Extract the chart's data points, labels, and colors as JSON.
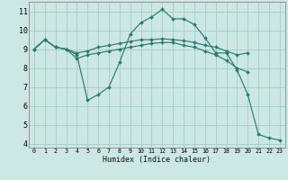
{
  "xlabel": "Humidex (Indice chaleur)",
  "background_color": "#cce8e4",
  "grid_color": "#aacfcb",
  "line_color": "#2a7d6e",
  "xlim": [
    -0.5,
    23.5
  ],
  "ylim": [
    3.8,
    11.5
  ],
  "yticks": [
    4,
    5,
    6,
    7,
    8,
    9,
    10,
    11
  ],
  "xticks": [
    0,
    1,
    2,
    3,
    4,
    5,
    6,
    7,
    8,
    9,
    10,
    11,
    12,
    13,
    14,
    15,
    16,
    17,
    18,
    19,
    20,
    21,
    22,
    23
  ],
  "series": [
    {
      "x": [
        0,
        1,
        2,
        3,
        4,
        5,
        6,
        7,
        8,
        9,
        10,
        11,
        12,
        13,
        14,
        15,
        16,
        17,
        18,
        19,
        20,
        21,
        22,
        23
      ],
      "y": [
        9.0,
        9.5,
        9.1,
        9.0,
        8.7,
        6.3,
        6.6,
        7.0,
        8.3,
        9.8,
        10.4,
        10.7,
        11.1,
        10.6,
        10.6,
        10.3,
        9.6,
        8.8,
        8.8,
        7.9,
        6.6,
        4.5,
        4.3,
        4.2
      ]
    },
    {
      "x": [
        0,
        1,
        2,
        3,
        4,
        5,
        6,
        7,
        8,
        9,
        10,
        11,
        12,
        13,
        14,
        15,
        16,
        17,
        18,
        19,
        20
      ],
      "y": [
        9.0,
        9.5,
        9.1,
        9.0,
        8.8,
        8.9,
        9.1,
        9.2,
        9.3,
        9.4,
        9.5,
        9.5,
        9.55,
        9.5,
        9.45,
        9.35,
        9.2,
        9.1,
        8.9,
        8.7,
        8.8
      ]
    },
    {
      "x": [
        0,
        1,
        2,
        3,
        4,
        5,
        6,
        7,
        8,
        9,
        10,
        11,
        12,
        13,
        14,
        15,
        16,
        17,
        18,
        19,
        20
      ],
      "y": [
        9.0,
        9.5,
        9.1,
        9.0,
        8.5,
        8.7,
        8.8,
        8.9,
        9.0,
        9.1,
        9.2,
        9.3,
        9.35,
        9.35,
        9.2,
        9.1,
        8.9,
        8.7,
        8.4,
        8.0,
        7.8
      ]
    }
  ]
}
